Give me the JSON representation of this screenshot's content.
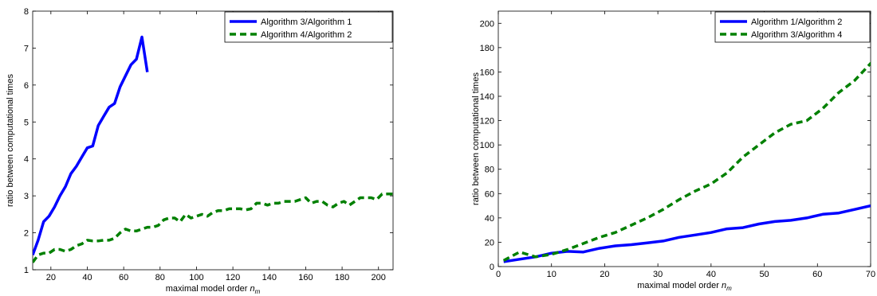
{
  "chart_data": [
    {
      "type": "line",
      "xlabel": "maximal model order",
      "xlabel_var": "n",
      "xlabel_sub": "m",
      "ylabel": "ratio between computational times",
      "xlim": [
        10,
        208
      ],
      "ylim": [
        1,
        8
      ],
      "xticks": [
        20,
        40,
        60,
        80,
        100,
        120,
        140,
        160,
        180,
        200
      ],
      "yticks": [
        1,
        2,
        3,
        4,
        5,
        6,
        7,
        8
      ],
      "legend_position": "top-right",
      "series": [
        {
          "name": "Algorithm 3/Algorithm 1",
          "color": "#0000ff",
          "style": "solid",
          "points": [
            [
              10,
              1.4
            ],
            [
              13,
              1.8
            ],
            [
              16,
              2.3
            ],
            [
              19,
              2.45
            ],
            [
              22,
              2.7
            ],
            [
              25,
              3.0
            ],
            [
              28,
              3.25
            ],
            [
              31,
              3.6
            ],
            [
              34,
              3.8
            ],
            [
              37,
              4.05
            ],
            [
              40,
              4.3
            ],
            [
              43,
              4.35
            ],
            [
              46,
              4.9
            ],
            [
              49,
              5.15
            ],
            [
              52,
              5.4
            ],
            [
              55,
              5.5
            ],
            [
              58,
              5.95
            ],
            [
              61,
              6.25
            ],
            [
              64,
              6.55
            ],
            [
              67,
              6.7
            ],
            [
              70,
              7.3
            ],
            [
              73,
              6.35
            ]
          ]
        },
        {
          "name": "Algorithm 4/Algorithm 2",
          "color": "#008000",
          "style": "dashed",
          "points": [
            [
              10,
              1.2
            ],
            [
              13,
              1.4
            ],
            [
              16,
              1.45
            ],
            [
              19,
              1.45
            ],
            [
              22,
              1.55
            ],
            [
              25,
              1.55
            ],
            [
              28,
              1.5
            ],
            [
              31,
              1.55
            ],
            [
              34,
              1.65
            ],
            [
              37,
              1.7
            ],
            [
              40,
              1.8
            ],
            [
              43,
              1.78
            ],
            [
              46,
              1.78
            ],
            [
              49,
              1.8
            ],
            [
              52,
              1.8
            ],
            [
              55,
              1.85
            ],
            [
              58,
              2.0
            ],
            [
              61,
              2.1
            ],
            [
              64,
              2.05
            ],
            [
              67,
              2.05
            ],
            [
              70,
              2.1
            ],
            [
              73,
              2.15
            ],
            [
              76,
              2.15
            ],
            [
              79,
              2.2
            ],
            [
              82,
              2.35
            ],
            [
              85,
              2.4
            ],
            [
              88,
              2.4
            ],
            [
              91,
              2.3
            ],
            [
              94,
              2.5
            ],
            [
              97,
              2.4
            ],
            [
              100,
              2.45
            ],
            [
              103,
              2.5
            ],
            [
              106,
              2.45
            ],
            [
              109,
              2.55
            ],
            [
              112,
              2.6
            ],
            [
              115,
              2.6
            ],
            [
              118,
              2.65
            ],
            [
              121,
              2.65
            ],
            [
              124,
              2.65
            ],
            [
              127,
              2.62
            ],
            [
              130,
              2.65
            ],
            [
              133,
              2.8
            ],
            [
              136,
              2.8
            ],
            [
              139,
              2.75
            ],
            [
              142,
              2.8
            ],
            [
              145,
              2.8
            ],
            [
              148,
              2.85
            ],
            [
              151,
              2.85
            ],
            [
              154,
              2.85
            ],
            [
              157,
              2.9
            ],
            [
              160,
              2.95
            ],
            [
              163,
              2.8
            ],
            [
              166,
              2.85
            ],
            [
              169,
              2.85
            ],
            [
              172,
              2.75
            ],
            [
              175,
              2.7
            ],
            [
              178,
              2.8
            ],
            [
              181,
              2.85
            ],
            [
              184,
              2.75
            ],
            [
              187,
              2.85
            ],
            [
              190,
              2.95
            ],
            [
              193,
              2.95
            ],
            [
              196,
              2.95
            ],
            [
              199,
              2.9
            ],
            [
              202,
              3.05
            ],
            [
              205,
              3.05
            ],
            [
              208,
              3.05
            ]
          ]
        }
      ]
    },
    {
      "type": "line",
      "xlabel": "maximal model order",
      "xlabel_var": "n",
      "xlabel_sub": "m",
      "ylabel": "ratio between computational times",
      "xlim": [
        0,
        70
      ],
      "ylim": [
        0,
        210
      ],
      "xticks": [
        0,
        10,
        20,
        30,
        40,
        50,
        60,
        70
      ],
      "yticks": [
        0,
        20,
        40,
        60,
        80,
        100,
        120,
        140,
        160,
        180,
        200
      ],
      "legend_position": "top-right",
      "series": [
        {
          "name": "Algorithm 1/Algorithm 2",
          "color": "#0000ff",
          "style": "solid",
          "points": [
            [
              1,
              4
            ],
            [
              4,
              6
            ],
            [
              7,
              8
            ],
            [
              10,
              11
            ],
            [
              13,
              12.5
            ],
            [
              16,
              12
            ],
            [
              19,
              15
            ],
            [
              22,
              17
            ],
            [
              25,
              18
            ],
            [
              28,
              19.5
            ],
            [
              31,
              21
            ],
            [
              34,
              24
            ],
            [
              37,
              26
            ],
            [
              40,
              28
            ],
            [
              43,
              31
            ],
            [
              46,
              32
            ],
            [
              49,
              35
            ],
            [
              52,
              37
            ],
            [
              55,
              38
            ],
            [
              58,
              40
            ],
            [
              61,
              43
            ],
            [
              64,
              44
            ],
            [
              67,
              47
            ],
            [
              70,
              50
            ]
          ]
        },
        {
          "name": "Algorithm 3/Algorithm 4",
          "color": "#008000",
          "style": "dashed",
          "points": [
            [
              1,
              5
            ],
            [
              4,
              12
            ],
            [
              7,
              8
            ],
            [
              10,
              10
            ],
            [
              13,
              14
            ],
            [
              16,
              19
            ],
            [
              19,
              24
            ],
            [
              22,
              28
            ],
            [
              25,
              34
            ],
            [
              28,
              40
            ],
            [
              31,
              47
            ],
            [
              34,
              55
            ],
            [
              37,
              62
            ],
            [
              40,
              68
            ],
            [
              43,
              77
            ],
            [
              46,
              90
            ],
            [
              49,
              100
            ],
            [
              52,
              110
            ],
            [
              55,
              117
            ],
            [
              58,
              120
            ],
            [
              61,
              130
            ],
            [
              64,
              143
            ],
            [
              67,
              153
            ],
            [
              70,
              167
            ],
            [
              71,
              170
            ]
          ]
        }
      ]
    }
  ]
}
